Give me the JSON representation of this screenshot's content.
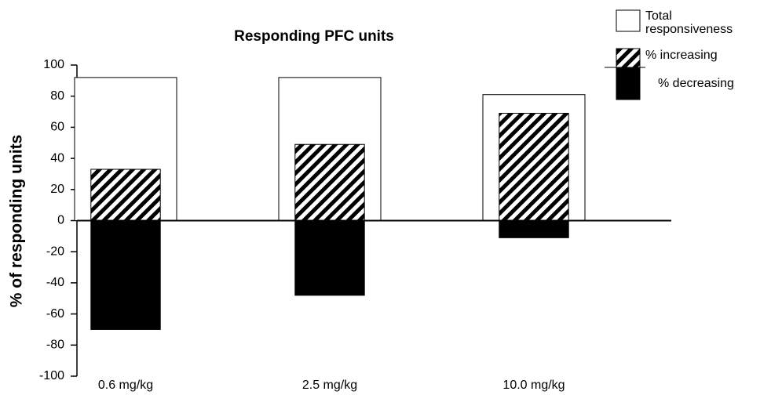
{
  "chart_data": {
    "type": "bar",
    "title": "Responding PFC units",
    "y_label": "% of responding units",
    "categories": [
      "0.6 mg/kg",
      "2.5 mg/kg",
      "10.0 mg/kg"
    ],
    "series": [
      {
        "name": "Total responsiveness",
        "color": "#ffffff",
        "values": [
          92,
          92,
          81
        ]
      },
      {
        "name": "% increasing",
        "color": "#000000",
        "hatch": true,
        "values": [
          33,
          49,
          69
        ]
      },
      {
        "name": "% decreasing",
        "color": "#000000",
        "values": [
          -70,
          -48,
          -11
        ]
      }
    ],
    "ylim": [
      -100,
      100
    ],
    "yticks": [
      -100,
      -80,
      -60,
      -40,
      -20,
      0,
      20,
      40,
      60,
      80,
      100
    ],
    "grid": false
  }
}
